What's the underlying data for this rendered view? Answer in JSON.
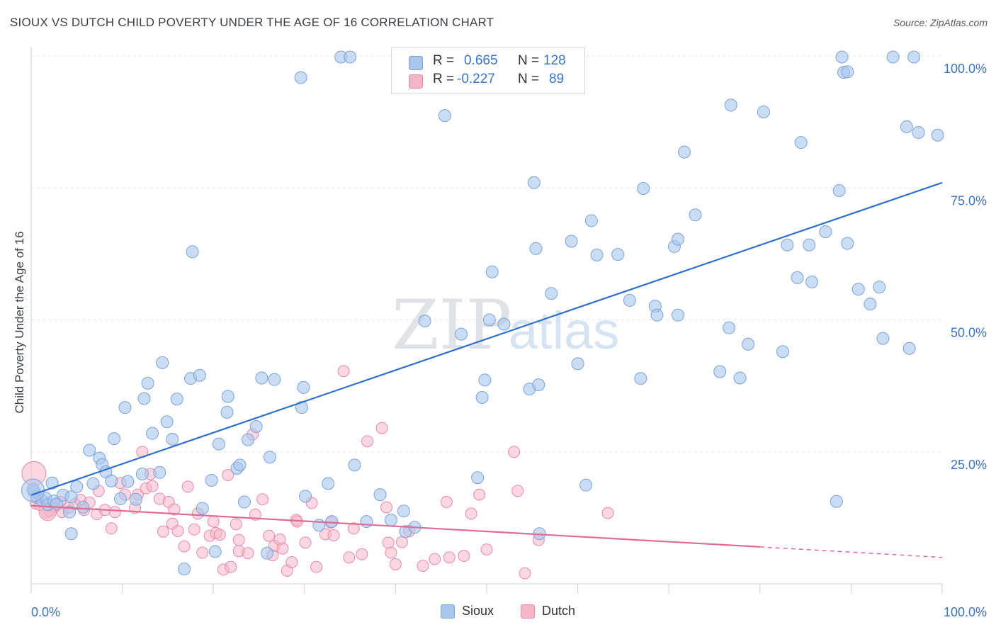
{
  "header": {
    "title": "SIOUX VS DUTCH CHILD POVERTY UNDER THE AGE OF 16 CORRELATION CHART",
    "source": "Source: ZipAtlas.com"
  },
  "watermark": "ZIPatlas",
  "legend": {
    "rows": [
      {
        "name": "Sioux",
        "r_label": "R =",
        "r_value": "0.665",
        "n_label": "N =",
        "n_value": "128",
        "color": "#a9c6ec"
      },
      {
        "name": "Dutch",
        "r_label": "R =",
        "r_value": "-0.227",
        "n_label": "N =",
        "n_value": "89",
        "color": "#f5b6c8"
      }
    ]
  },
  "colors": {
    "sioux_fill": "#a9c6ec",
    "sioux_stroke": "#7aa3d9",
    "sioux_line": "#2f6fd1",
    "dutch_fill": "#f5b6c8",
    "dutch_stroke": "#ea8aa8",
    "dutch_line": "#e06c95",
    "tick_text": "#3a73c6"
  },
  "chart_data": {
    "type": "scatter",
    "title": "SIOUX VS DUTCH CHILD POVERTY UNDER THE AGE OF 16 CORRELATION CHART",
    "xlabel": "",
    "ylabel": "Child Poverty Under the Age of 16",
    "xlim": [
      0,
      100
    ],
    "ylim": [
      0,
      100
    ],
    "x_tick_labels": [
      "0.0%",
      "100.0%"
    ],
    "y_ticks": [
      25,
      50,
      75,
      100
    ],
    "y_tick_labels": [
      "25.0%",
      "50.0%",
      "75.0%",
      "100.0%"
    ],
    "grid": true,
    "legend_position": "top-center",
    "series": [
      {
        "name": "Sioux",
        "trend": {
          "x": [
            0,
            100
          ],
          "y": [
            16.8,
            76.0
          ]
        },
        "points": [
          [
            0.3,
            17.5
          ],
          [
            0.6,
            16.4
          ],
          [
            1.2,
            15.8
          ],
          [
            1.6,
            16.2
          ],
          [
            1.8,
            15.0
          ],
          [
            2.3,
            19.1
          ],
          [
            2.5,
            15.7
          ],
          [
            2.8,
            15.1
          ],
          [
            3.5,
            16.8
          ],
          [
            4.2,
            13.6
          ],
          [
            4.4,
            16.5
          ],
          [
            5.0,
            18.4
          ],
          [
            4.4,
            9.5
          ],
          [
            5.7,
            14.5
          ],
          [
            6.4,
            25.3
          ],
          [
            6.8,
            19.0
          ],
          [
            7.5,
            23.8
          ],
          [
            7.8,
            22.6
          ],
          [
            8.2,
            21.2
          ],
          [
            8.8,
            19.5
          ],
          [
            9.1,
            27.5
          ],
          [
            9.8,
            16.1
          ],
          [
            10.3,
            33.4
          ],
          [
            10.6,
            19.4
          ],
          [
            11.5,
            16.0
          ],
          [
            12.2,
            20.8
          ],
          [
            12.4,
            35.1
          ],
          [
            12.8,
            38.0
          ],
          [
            13.3,
            28.5
          ],
          [
            14.1,
            21.1
          ],
          [
            14.4,
            41.9
          ],
          [
            14.9,
            30.7
          ],
          [
            15.5,
            27.4
          ],
          [
            16.0,
            35.0
          ],
          [
            16.8,
            2.8
          ],
          [
            17.5,
            38.9
          ],
          [
            17.7,
            62.9
          ],
          [
            18.5,
            39.5
          ],
          [
            18.8,
            14.3
          ],
          [
            19.8,
            19.6
          ],
          [
            20.2,
            6.1
          ],
          [
            20.6,
            26.5
          ],
          [
            21.5,
            32.5
          ],
          [
            21.6,
            35.5
          ],
          [
            22.6,
            21.9
          ],
          [
            22.9,
            22.5
          ],
          [
            23.4,
            15.5
          ],
          [
            23.8,
            27.3
          ],
          [
            24.7,
            29.8
          ],
          [
            25.3,
            39.0
          ],
          [
            25.9,
            5.8
          ],
          [
            26.2,
            24.0
          ],
          [
            26.7,
            38.7
          ],
          [
            29.6,
            95.9
          ],
          [
            29.9,
            37.2
          ],
          [
            29.7,
            33.4
          ],
          [
            30.1,
            16.6
          ],
          [
            31.6,
            11.1
          ],
          [
            33.0,
            11.8
          ],
          [
            32.6,
            19.0
          ],
          [
            34.0,
            99.8
          ],
          [
            35.0,
            99.8
          ],
          [
            35.5,
            22.5
          ],
          [
            36.8,
            11.8
          ],
          [
            38.3,
            16.9
          ],
          [
            39.5,
            12.1
          ],
          [
            40.9,
            13.8
          ],
          [
            41.1,
            9.9
          ],
          [
            42.1,
            10.7
          ],
          [
            43.2,
            49.8
          ],
          [
            45.4,
            88.7
          ],
          [
            47.2,
            47.3
          ],
          [
            49.0,
            20.1
          ],
          [
            49.5,
            35.3
          ],
          [
            49.8,
            38.6
          ],
          [
            50.3,
            50.0
          ],
          [
            50.6,
            59.1
          ],
          [
            51.9,
            49.2
          ],
          [
            54.7,
            36.9
          ],
          [
            55.2,
            76.0
          ],
          [
            55.4,
            63.5
          ],
          [
            55.7,
            37.7
          ],
          [
            55.8,
            9.5
          ],
          [
            57.1,
            55.0
          ],
          [
            59.3,
            64.9
          ],
          [
            60.0,
            41.7
          ],
          [
            60.9,
            18.7
          ],
          [
            61.5,
            68.8
          ],
          [
            62.1,
            62.3
          ],
          [
            64.4,
            62.4
          ],
          [
            65.7,
            53.7
          ],
          [
            66.9,
            38.9
          ],
          [
            67.2,
            74.9
          ],
          [
            68.5,
            52.6
          ],
          [
            68.7,
            50.9
          ],
          [
            70.6,
            63.9
          ],
          [
            71.0,
            65.3
          ],
          [
            71.0,
            50.9
          ],
          [
            71.7,
            81.8
          ],
          [
            72.9,
            69.9
          ],
          [
            75.6,
            40.2
          ],
          [
            76.6,
            48.5
          ],
          [
            76.8,
            90.7
          ],
          [
            77.8,
            39.0
          ],
          [
            78.7,
            45.4
          ],
          [
            80.4,
            89.4
          ],
          [
            82.5,
            44.0
          ],
          [
            83.0,
            64.2
          ],
          [
            84.1,
            58.0
          ],
          [
            84.5,
            83.6
          ],
          [
            85.4,
            64.2
          ],
          [
            85.7,
            57.2
          ],
          [
            87.2,
            66.7
          ],
          [
            88.4,
            15.6
          ],
          [
            88.7,
            74.5
          ],
          [
            89.0,
            99.8
          ],
          [
            89.2,
            96.9
          ],
          [
            89.6,
            97.0
          ],
          [
            89.6,
            64.5
          ],
          [
            90.8,
            55.8
          ],
          [
            92.1,
            53.0
          ],
          [
            93.1,
            56.2
          ],
          [
            93.5,
            46.5
          ],
          [
            94.6,
            99.8
          ],
          [
            96.1,
            86.6
          ],
          [
            96.4,
            44.6
          ],
          [
            96.9,
            99.8
          ],
          [
            97.4,
            85.5
          ],
          [
            99.5,
            85.0
          ],
          [
            0.2,
            17.9
          ]
        ],
        "big_point": [
          0.2,
          17.7
        ]
      },
      {
        "name": "Dutch",
        "trend": {
          "x": [
            0,
            80
          ],
          "y": [
            14.8,
            7.0
          ],
          "dashed_to": {
            "x": 100,
            "y": 5.0
          }
        },
        "points": [
          [
            0.5,
            15.2
          ],
          [
            1.0,
            14.9
          ],
          [
            1.7,
            13.5
          ],
          [
            2.0,
            13.8
          ],
          [
            2.6,
            14.6
          ],
          [
            3.2,
            15.5
          ],
          [
            3.4,
            13.6
          ],
          [
            4.1,
            14.4
          ],
          [
            4.8,
            15.1
          ],
          [
            5.4,
            15.9
          ],
          [
            5.8,
            14.0
          ],
          [
            6.4,
            15.4
          ],
          [
            7.2,
            13.2
          ],
          [
            7.4,
            17.6
          ],
          [
            8.1,
            14.0
          ],
          [
            8.8,
            10.5
          ],
          [
            9.2,
            13.6
          ],
          [
            9.8,
            19.1
          ],
          [
            10.3,
            16.9
          ],
          [
            11.4,
            14.4
          ],
          [
            11.7,
            16.9
          ],
          [
            12.2,
            25.0
          ],
          [
            12.6,
            18.1
          ],
          [
            13.1,
            20.8
          ],
          [
            13.3,
            18.5
          ],
          [
            14.1,
            16.1
          ],
          [
            14.5,
            9.9
          ],
          [
            15.1,
            15.5
          ],
          [
            15.5,
            11.4
          ],
          [
            15.7,
            14.1
          ],
          [
            16.1,
            10.0
          ],
          [
            16.8,
            7.1
          ],
          [
            17.2,
            18.4
          ],
          [
            17.9,
            10.3
          ],
          [
            18.3,
            13.3
          ],
          [
            18.8,
            5.9
          ],
          [
            19.6,
            9.1
          ],
          [
            20.0,
            11.8
          ],
          [
            20.3,
            9.6
          ],
          [
            20.7,
            9.3
          ],
          [
            21.1,
            2.7
          ],
          [
            21.6,
            20.6
          ],
          [
            21.9,
            3.2
          ],
          [
            22.8,
            6.2
          ],
          [
            22.5,
            11.3
          ],
          [
            22.8,
            8.3
          ],
          [
            23.8,
            5.8
          ],
          [
            24.3,
            28.3
          ],
          [
            24.6,
            13.1
          ],
          [
            25.4,
            16.0
          ],
          [
            26.1,
            9.1
          ],
          [
            26.5,
            5.4
          ],
          [
            26.7,
            7.2
          ],
          [
            27.3,
            8.4
          ],
          [
            27.6,
            6.7
          ],
          [
            28.1,
            2.5
          ],
          [
            28.6,
            4.1
          ],
          [
            29.1,
            12.1
          ],
          [
            29.2,
            11.8
          ],
          [
            30.1,
            7.8
          ],
          [
            30.8,
            15.3
          ],
          [
            31.3,
            3.2
          ],
          [
            32.3,
            9.4
          ],
          [
            32.9,
            11.6
          ],
          [
            33.2,
            9.2
          ],
          [
            34.3,
            40.3
          ],
          [
            34.9,
            5.0
          ],
          [
            35.4,
            10.5
          ],
          [
            36.3,
            5.6
          ],
          [
            36.9,
            27.0
          ],
          [
            38.5,
            29.5
          ],
          [
            39.0,
            14.5
          ],
          [
            39.2,
            7.8
          ],
          [
            39.5,
            5.9
          ],
          [
            40.0,
            3.7
          ],
          [
            40.7,
            7.9
          ],
          [
            41.5,
            10.0
          ],
          [
            43.0,
            3.4
          ],
          [
            44.3,
            4.7
          ],
          [
            45.6,
            15.5
          ],
          [
            45.9,
            5.0
          ],
          [
            47.5,
            5.3
          ],
          [
            48.3,
            13.3
          ],
          [
            49.2,
            16.9
          ],
          [
            50.0,
            6.5
          ],
          [
            53.0,
            25.0
          ],
          [
            53.4,
            17.6
          ],
          [
            54.2,
            2.0
          ],
          [
            55.7,
            8.3
          ],
          [
            63.3,
            13.4
          ]
        ],
        "big_point": [
          0.3,
          20.9
        ],
        "big_point2": [
          1.8,
          13.6
        ]
      }
    ]
  }
}
